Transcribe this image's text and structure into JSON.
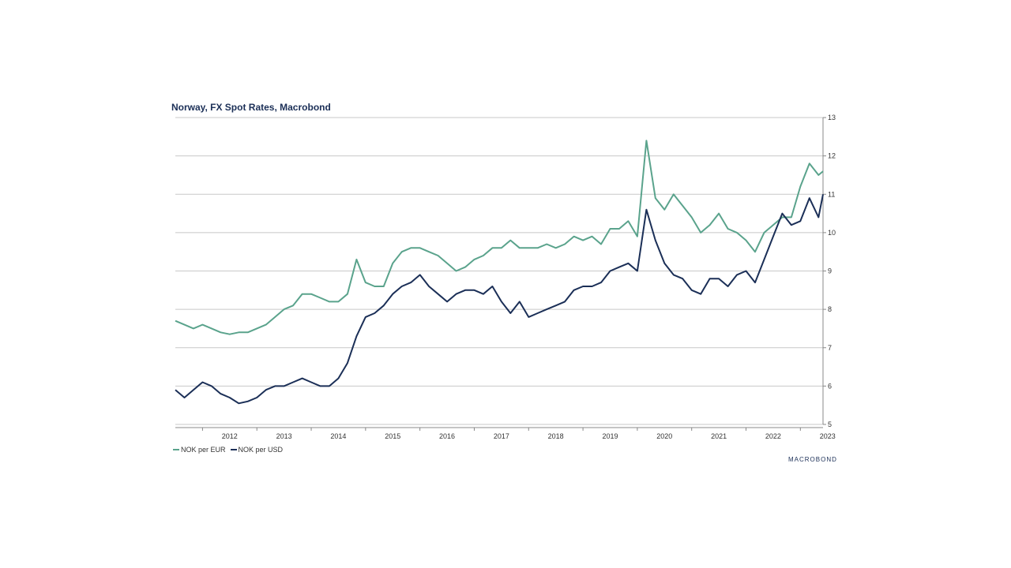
{
  "chart_data": {
    "type": "line",
    "title": "Norway, FX Spot Rates, Macrobond",
    "x_tick_labels": [
      "2012",
      "2013",
      "2014",
      "2015",
      "2016",
      "2017",
      "2018",
      "2019",
      "2020",
      "2021",
      "2022",
      "2023"
    ],
    "y_tick_labels": [
      "5",
      "6",
      "7",
      "8",
      "9",
      "10",
      "11",
      "12",
      "13"
    ],
    "ylim": [
      5,
      13
    ],
    "xlim": [
      "2011-07",
      "2023-06"
    ],
    "y_axis_side": "right",
    "grid": "horizontal",
    "legend_position": "bottom-left",
    "x": [
      "2011-07",
      "2011-09",
      "2011-11",
      "2012-01",
      "2012-03",
      "2012-05",
      "2012-07",
      "2012-09",
      "2012-11",
      "2013-01",
      "2013-03",
      "2013-05",
      "2013-07",
      "2013-09",
      "2013-11",
      "2014-01",
      "2014-03",
      "2014-05",
      "2014-07",
      "2014-09",
      "2014-11",
      "2015-01",
      "2015-03",
      "2015-05",
      "2015-07",
      "2015-09",
      "2015-11",
      "2016-01",
      "2016-03",
      "2016-05",
      "2016-07",
      "2016-09",
      "2016-11",
      "2017-01",
      "2017-03",
      "2017-05",
      "2017-07",
      "2017-09",
      "2017-11",
      "2018-01",
      "2018-03",
      "2018-05",
      "2018-07",
      "2018-09",
      "2018-11",
      "2019-01",
      "2019-03",
      "2019-05",
      "2019-07",
      "2019-09",
      "2019-11",
      "2020-01",
      "2020-03",
      "2020-05",
      "2020-07",
      "2020-09",
      "2020-11",
      "2021-01",
      "2021-03",
      "2021-05",
      "2021-07",
      "2021-09",
      "2021-11",
      "2022-01",
      "2022-03",
      "2022-05",
      "2022-07",
      "2022-09",
      "2022-11",
      "2023-01",
      "2023-03",
      "2023-05",
      "2023-06"
    ],
    "series": [
      {
        "name": "NOK per EUR",
        "color": "#5aa38c",
        "values": [
          7.7,
          7.6,
          7.5,
          7.6,
          7.5,
          7.4,
          7.35,
          7.4,
          7.4,
          7.5,
          7.6,
          7.8,
          8.0,
          8.1,
          8.4,
          8.4,
          8.3,
          8.2,
          8.2,
          8.4,
          9.3,
          8.7,
          8.6,
          8.6,
          9.2,
          9.5,
          9.6,
          9.6,
          9.5,
          9.4,
          9.2,
          9.0,
          9.1,
          9.3,
          9.4,
          9.6,
          9.6,
          9.8,
          9.6,
          9.6,
          9.6,
          9.7,
          9.6,
          9.7,
          9.9,
          9.8,
          9.9,
          9.7,
          10.1,
          10.1,
          10.3,
          9.9,
          12.4,
          10.9,
          10.6,
          11.0,
          10.7,
          10.4,
          10.0,
          10.2,
          10.5,
          10.1,
          10.0,
          9.8,
          9.5,
          10.0,
          10.2,
          10.4,
          10.4,
          11.2,
          11.8,
          11.5,
          11.6
        ]
      },
      {
        "name": "NOK per USD",
        "color": "#1b2f57",
        "values": [
          5.9,
          5.7,
          5.9,
          6.1,
          6.0,
          5.8,
          5.7,
          5.55,
          5.6,
          5.7,
          5.9,
          6.0,
          6.0,
          6.1,
          6.2,
          6.1,
          6.0,
          6.0,
          6.2,
          6.6,
          7.3,
          7.8,
          7.9,
          8.1,
          8.4,
          8.6,
          8.7,
          8.9,
          8.6,
          8.4,
          8.2,
          8.4,
          8.5,
          8.5,
          8.4,
          8.6,
          8.2,
          7.9,
          8.2,
          7.8,
          7.9,
          8.0,
          8.1,
          8.2,
          8.5,
          8.6,
          8.6,
          8.7,
          9.0,
          9.1,
          9.2,
          9.0,
          10.6,
          9.8,
          9.2,
          8.9,
          8.8,
          8.5,
          8.4,
          8.8,
          8.8,
          8.6,
          8.9,
          9.0,
          8.7,
          9.3,
          9.9,
          10.5,
          10.2,
          10.3,
          10.9,
          10.4,
          11.0
        ]
      }
    ],
    "legend": [
      "NOK per EUR",
      "NOK per USD"
    ]
  },
  "footer": {
    "brand": "MACROBOND"
  }
}
